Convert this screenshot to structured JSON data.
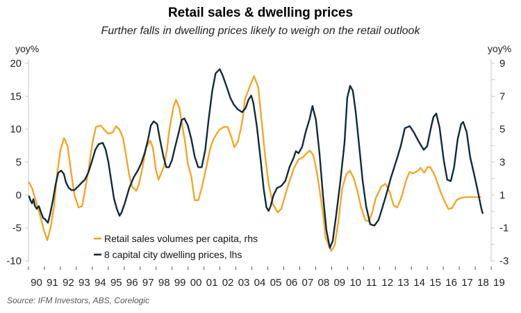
{
  "chart_data": {
    "type": "line",
    "title": "Retail sales & dwelling prices",
    "subtitle": "Further falls in dwelling prices likely to weigh on the retail outlook",
    "ylabel_left": "yoy%",
    "ylabel_right": "yoy%",
    "source": "Source: IFM Investors, ABS, Corelogic",
    "x_range": [
      1990,
      2019
    ],
    "x_tick_labels": [
      "90",
      "91",
      "92",
      "93",
      "94",
      "95",
      "96",
      "97",
      "98",
      "99",
      "00",
      "01",
      "02",
      "03",
      "04",
      "05",
      "06",
      "07",
      "08",
      "09",
      "10",
      "11",
      "12",
      "13",
      "14",
      "15",
      "16",
      "17",
      "18",
      "19"
    ],
    "ylim_left": [
      -10,
      20
    ],
    "yticks_left": [
      "20",
      "15",
      "10",
      "5",
      "0",
      "-5",
      "-10"
    ],
    "ylim_right": [
      -3,
      9
    ],
    "yticks_right": [
      "9",
      "7",
      "5",
      "3",
      "1",
      "-1",
      "-3"
    ],
    "grid": false,
    "legend_position": "bottom-left",
    "series": [
      {
        "name": "Retail sales volumes per capita, rhs",
        "axis": "right",
        "color": "#F5A623",
        "points": [
          [
            1990.04,
            1.76
          ],
          [
            1990.22,
            1.42
          ],
          [
            1990.48,
            0.58
          ],
          [
            1990.74,
            -0.27
          ],
          [
            1990.96,
            -1.11
          ],
          [
            1991.18,
            -1.75
          ],
          [
            1991.4,
            -0.9
          ],
          [
            1991.61,
            0.37
          ],
          [
            1991.79,
            2.27
          ],
          [
            1992.01,
            3.75
          ],
          [
            1992.23,
            4.46
          ],
          [
            1992.45,
            3.96
          ],
          [
            1992.66,
            2.48
          ],
          [
            1992.88,
            1.0
          ],
          [
            1993.14,
            0.24
          ],
          [
            1993.36,
            0.32
          ],
          [
            1993.53,
            1.21
          ],
          [
            1993.79,
            2.69
          ],
          [
            1994.01,
            4.17
          ],
          [
            1994.23,
            5.14
          ],
          [
            1994.53,
            5.22
          ],
          [
            1994.75,
            4.97
          ],
          [
            1995.01,
            4.72
          ],
          [
            1995.28,
            4.8
          ],
          [
            1995.49,
            5.18
          ],
          [
            1995.71,
            4.97
          ],
          [
            1995.93,
            4.46
          ],
          [
            1996.15,
            3.2
          ],
          [
            1996.32,
            2.18
          ],
          [
            1996.5,
            1.51
          ],
          [
            1996.76,
            1.25
          ],
          [
            1996.93,
            1.68
          ],
          [
            1997.15,
            2.69
          ],
          [
            1997.37,
            3.87
          ],
          [
            1997.63,
            4.3
          ],
          [
            1997.8,
            3.87
          ],
          [
            1997.98,
            2.56
          ],
          [
            1998.15,
            1.93
          ],
          [
            1998.33,
            2.35
          ],
          [
            1998.5,
            2.77
          ],
          [
            1998.68,
            3.75
          ],
          [
            1998.81,
            4.8
          ],
          [
            1999.07,
            6.28
          ],
          [
            1999.25,
            6.79
          ],
          [
            1999.46,
            6.28
          ],
          [
            1999.64,
            5.22
          ],
          [
            1999.81,
            4.25
          ],
          [
            1999.99,
            2.9
          ],
          [
            2000.21,
            2.1
          ],
          [
            2000.42,
            0.68
          ],
          [
            2000.64,
            0.68
          ],
          [
            2000.86,
            1.42
          ],
          [
            2001.13,
            2.61
          ],
          [
            2001.39,
            3.83
          ],
          [
            2001.61,
            4.42
          ],
          [
            2001.96,
            4.97
          ],
          [
            2002.26,
            5.14
          ],
          [
            2002.48,
            5.14
          ],
          [
            2002.7,
            4.55
          ],
          [
            2002.91,
            3.91
          ],
          [
            2003.13,
            4.25
          ],
          [
            2003.31,
            5.01
          ],
          [
            2003.44,
            5.73
          ],
          [
            2003.57,
            6.83
          ],
          [
            2003.87,
            7.59
          ],
          [
            2004.14,
            8.22
          ],
          [
            2004.4,
            7.55
          ],
          [
            2004.62,
            5.44
          ],
          [
            2004.84,
            3.32
          ],
          [
            2005.06,
            1.63
          ],
          [
            2005.32,
            0.45
          ],
          [
            2005.62,
            -0.06
          ],
          [
            2005.84,
            0.15
          ],
          [
            2006.1,
            1.0
          ],
          [
            2006.36,
            1.84
          ],
          [
            2006.67,
            2.69
          ],
          [
            2006.93,
            3.15
          ],
          [
            2007.19,
            3.28
          ],
          [
            2007.49,
            3.58
          ],
          [
            2007.62,
            3.7
          ],
          [
            2007.84,
            3.45
          ],
          [
            2008.06,
            2.48
          ],
          [
            2008.23,
            1.42
          ],
          [
            2008.49,
            -0.31
          ],
          [
            2008.61,
            -1.54
          ],
          [
            2008.97,
            -2.39
          ],
          [
            2009.19,
            -2.06
          ],
          [
            2009.41,
            -0.7
          ],
          [
            2009.67,
            1.42
          ],
          [
            2009.93,
            2.27
          ],
          [
            2010.15,
            2.48
          ],
          [
            2010.41,
            1.97
          ],
          [
            2010.63,
            1.17
          ],
          [
            2010.85,
            0.24
          ],
          [
            2011.11,
            -0.52
          ],
          [
            2011.33,
            -0.61
          ],
          [
            2011.55,
            -0.06
          ],
          [
            2011.76,
            0.79
          ],
          [
            2012.11,
            1.51
          ],
          [
            2012.37,
            1.68
          ],
          [
            2012.63,
            1.21
          ],
          [
            2012.89,
            0.37
          ],
          [
            2013.11,
            0.24
          ],
          [
            2013.37,
            0.83
          ],
          [
            2013.67,
            1.89
          ],
          [
            2013.89,
            2.39
          ],
          [
            2014.11,
            2.31
          ],
          [
            2014.28,
            2.39
          ],
          [
            2014.41,
            2.48
          ],
          [
            2014.58,
            2.65
          ],
          [
            2014.8,
            2.35
          ],
          [
            2015.02,
            2.69
          ],
          [
            2015.19,
            2.69
          ],
          [
            2015.49,
            2.14
          ],
          [
            2015.84,
            1.17
          ],
          [
            2016.1,
            0.58
          ],
          [
            2016.32,
            0.15
          ],
          [
            2016.54,
            0.2
          ],
          [
            2016.85,
            0.7
          ],
          [
            2017.11,
            0.83
          ],
          [
            2017.42,
            0.87
          ],
          [
            2017.72,
            0.87
          ],
          [
            2018.33,
            0.87
          ]
        ]
      },
      {
        "name": "8 capital city dwelling prices, lhs",
        "axis": "left",
        "color": "#0E2A3B",
        "points": [
          [
            1990.04,
            -0.21
          ],
          [
            1990.13,
            -0.84
          ],
          [
            1990.22,
            -1.27
          ],
          [
            1990.31,
            -0.63
          ],
          [
            1990.39,
            -1.58
          ],
          [
            1990.52,
            -2.11
          ],
          [
            1990.65,
            -1.69
          ],
          [
            1990.79,
            -2.64
          ],
          [
            1990.92,
            -3.48
          ],
          [
            1991.05,
            -3.7
          ],
          [
            1991.22,
            -4.22
          ],
          [
            1991.35,
            -2.96
          ],
          [
            1991.53,
            -0.84
          ],
          [
            1991.7,
            1.58
          ],
          [
            1991.87,
            3.38
          ],
          [
            1992.05,
            3.7
          ],
          [
            1992.22,
            3.17
          ],
          [
            1992.35,
            1.9
          ],
          [
            1992.53,
            1.06
          ],
          [
            1992.7,
            0.74
          ],
          [
            1992.88,
            0.74
          ],
          [
            1993.1,
            1.27
          ],
          [
            1993.31,
            1.8
          ],
          [
            1993.53,
            2.32
          ],
          [
            1993.75,
            3.38
          ],
          [
            1993.97,
            5.07
          ],
          [
            1994.19,
            6.86
          ],
          [
            1994.4,
            7.71
          ],
          [
            1994.66,
            7.92
          ],
          [
            1994.84,
            6.86
          ],
          [
            1995.01,
            4.96
          ],
          [
            1995.19,
            2.11
          ],
          [
            1995.36,
            -0.53
          ],
          [
            1995.54,
            -2.11
          ],
          [
            1995.71,
            -3.17
          ],
          [
            1995.84,
            -2.64
          ],
          [
            1996.06,
            -1.06
          ],
          [
            1996.32,
            1.06
          ],
          [
            1996.59,
            2.64
          ],
          [
            1996.85,
            3.7
          ],
          [
            1997.06,
            4.75
          ],
          [
            1997.28,
            6.34
          ],
          [
            1997.5,
            8.45
          ],
          [
            1997.67,
            10.56
          ],
          [
            1997.85,
            11.19
          ],
          [
            1998.07,
            10.77
          ],
          [
            1998.24,
            8.45
          ],
          [
            1998.46,
            5.81
          ],
          [
            1998.64,
            4.22
          ],
          [
            1998.81,
            4.22
          ],
          [
            1998.99,
            5.28
          ],
          [
            1999.2,
            7.39
          ],
          [
            1999.42,
            9.5
          ],
          [
            1999.6,
            11.4
          ],
          [
            1999.77,
            11.62
          ],
          [
            1999.99,
            10.56
          ],
          [
            2000.21,
            8.45
          ],
          [
            2000.42,
            5.81
          ],
          [
            2000.64,
            4.22
          ],
          [
            2000.86,
            4.22
          ],
          [
            2001.08,
            6.86
          ],
          [
            2001.3,
            11.62
          ],
          [
            2001.52,
            15.84
          ],
          [
            2001.73,
            18.48
          ],
          [
            2001.99,
            19.11
          ],
          [
            2002.17,
            18.16
          ],
          [
            2002.43,
            16.37
          ],
          [
            2002.65,
            14.78
          ],
          [
            2002.87,
            13.73
          ],
          [
            2003.13,
            12.99
          ],
          [
            2003.39,
            12.57
          ],
          [
            2003.61,
            13.2
          ],
          [
            2003.79,
            14.47
          ],
          [
            2003.96,
            15.1
          ],
          [
            2004.09,
            14.05
          ],
          [
            2004.31,
            10.56
          ],
          [
            2004.53,
            5.81
          ],
          [
            2004.75,
            0.84
          ],
          [
            2004.92,
            -1.9
          ],
          [
            2005.05,
            -2.43
          ],
          [
            2005.18,
            -1.69
          ],
          [
            2005.36,
            0.0
          ],
          [
            2005.58,
            1.06
          ],
          [
            2005.84,
            1.37
          ],
          [
            2006.1,
            2.11
          ],
          [
            2006.36,
            4.22
          ],
          [
            2006.63,
            5.7
          ],
          [
            2006.76,
            6.65
          ],
          [
            2006.93,
            6.34
          ],
          [
            2007.15,
            7.29
          ],
          [
            2007.37,
            9.5
          ],
          [
            2007.63,
            11.62
          ],
          [
            2007.8,
            13.52
          ],
          [
            2008.02,
            11.4
          ],
          [
            2008.24,
            6.34
          ],
          [
            2008.46,
            0.0
          ],
          [
            2008.67,
            -5.28
          ],
          [
            2008.89,
            -8.03
          ],
          [
            2009.07,
            -6.97
          ],
          [
            2009.28,
            -3.17
          ],
          [
            2009.55,
            2.11
          ],
          [
            2009.81,
            7.92
          ],
          [
            2009.98,
            14.78
          ],
          [
            2010.16,
            16.58
          ],
          [
            2010.33,
            15.84
          ],
          [
            2010.51,
            12.67
          ],
          [
            2010.73,
            7.39
          ],
          [
            2010.94,
            2.32
          ],
          [
            2011.16,
            -1.69
          ],
          [
            2011.42,
            -4.43
          ],
          [
            2011.68,
            -4.65
          ],
          [
            2011.94,
            -3.8
          ],
          [
            2012.16,
            -2.11
          ],
          [
            2012.42,
            0.0
          ],
          [
            2012.72,
            2.64
          ],
          [
            2013.07,
            5.28
          ],
          [
            2013.33,
            7.39
          ],
          [
            2013.59,
            10.14
          ],
          [
            2013.9,
            10.45
          ],
          [
            2014.16,
            9.5
          ],
          [
            2014.46,
            8.13
          ],
          [
            2014.77,
            6.86
          ],
          [
            2014.99,
            7.39
          ],
          [
            2015.21,
            10.03
          ],
          [
            2015.38,
            11.83
          ],
          [
            2015.56,
            12.36
          ],
          [
            2015.77,
            10.24
          ],
          [
            2016.03,
            5.28
          ],
          [
            2016.25,
            2.32
          ],
          [
            2016.47,
            2.11
          ],
          [
            2016.68,
            4.22
          ],
          [
            2016.9,
            8.45
          ],
          [
            2017.12,
            10.77
          ],
          [
            2017.25,
            11.09
          ],
          [
            2017.47,
            9.5
          ],
          [
            2017.68,
            5.81
          ],
          [
            2017.95,
            2.96
          ],
          [
            2018.17,
            0.53
          ],
          [
            2018.39,
            -2.11
          ],
          [
            2018.47,
            -2.75
          ]
        ]
      }
    ]
  }
}
